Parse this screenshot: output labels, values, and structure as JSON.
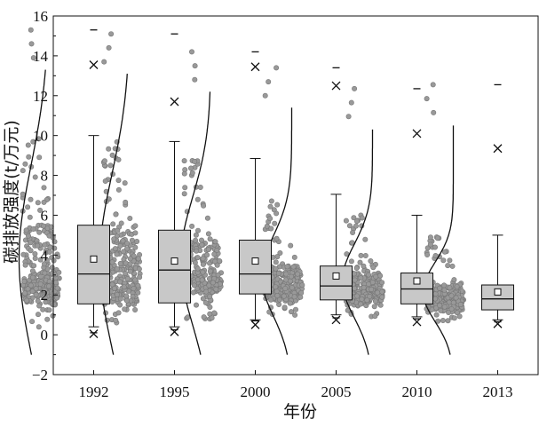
{
  "chart_data": {
    "type": "box",
    "xlabel": "年份",
    "ylabel": "碳排放强度(t/万元)",
    "ylim": [
      -2,
      16
    ],
    "yticks": [
      -2,
      0,
      2,
      4,
      6,
      8,
      10,
      12,
      14,
      16
    ],
    "grid": false,
    "categories": [
      "1992",
      "1995",
      "2000",
      "2005",
      "2010",
      "2013"
    ],
    "boxes": [
      {
        "category": "1992",
        "whisker_low": 0.4,
        "q1": 1.55,
        "median": 3.05,
        "q3": 5.5,
        "whisker_high": 10.0,
        "mean": 3.8,
        "min": 0.05,
        "max": 13.55,
        "p1": 0.1,
        "p99": 15.3
      },
      {
        "category": "1995",
        "whisker_low": 0.4,
        "q1": 1.6,
        "median": 3.25,
        "q3": 5.25,
        "whisker_high": 9.7,
        "mean": 3.7,
        "min": 0.15,
        "max": 11.7,
        "p1": 0.25,
        "p99": 15.1
      },
      {
        "category": "2000",
        "whisker_low": 0.75,
        "q1": 2.05,
        "median": 3.05,
        "q3": 4.75,
        "whisker_high": 8.85,
        "mean": 3.7,
        "min": 0.5,
        "max": 13.45,
        "p1": 0.7,
        "p99": 14.2
      },
      {
        "category": "2005",
        "whisker_low": 1.0,
        "q1": 1.75,
        "median": 2.45,
        "q3": 3.45,
        "whisker_high": 7.05,
        "mean": 2.95,
        "min": 0.75,
        "max": 12.5,
        "p1": 0.85,
        "p99": 13.4
      },
      {
        "category": "2010",
        "whisker_low": 0.9,
        "q1": 1.55,
        "median": 2.3,
        "q3": 3.1,
        "whisker_high": 6.0,
        "mean": 2.7,
        "min": 0.65,
        "max": 10.1,
        "p1": 0.8,
        "p99": 12.35
      },
      {
        "category": "2013",
        "whisker_low": 0.75,
        "q1": 1.25,
        "median": 1.8,
        "q3": 2.5,
        "whisker_high": 5.0,
        "mean": 2.15,
        "min": 0.55,
        "max": 9.35,
        "p1": 0.65,
        "p99": 12.55
      }
    ],
    "colors": {
      "box_fill": "#c8c8c8",
      "points": "#999999",
      "line": "#111111"
    }
  }
}
